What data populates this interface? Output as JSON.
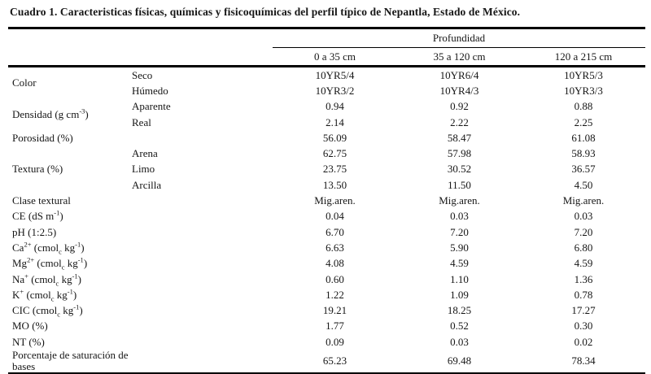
{
  "title": "Cuadro 1. Caracteristicas físicas, químicas y fisicoquímicas del perfil típico de Nepantla, Estado de México.",
  "table": {
    "header": {
      "group_label": "Profundidad",
      "columns": [
        "0 a 35 cm",
        "35 a 120 cm",
        "120 a 215 cm"
      ]
    },
    "rows": [
      {
        "label": [
          {
            "t": "Color"
          }
        ],
        "rowspan": 2,
        "sub": "Seco",
        "values": [
          "10YR5/4",
          "10YR6/4",
          "10YR5/3"
        ]
      },
      {
        "sub": "Húmedo",
        "values": [
          "10YR3/2",
          "10YR4/3",
          "10YR3/3"
        ]
      },
      {
        "label": [
          {
            "t": "Densidad (g cm"
          },
          {
            "t": "-3",
            "s": "sup"
          },
          {
            "t": ")"
          }
        ],
        "rowspan": 2,
        "sub": "Aparente",
        "values": [
          "0.94",
          "0.92",
          "0.88"
        ]
      },
      {
        "sub": "Real",
        "values": [
          "2.14",
          "2.22",
          "2.25"
        ]
      },
      {
        "label": [
          {
            "t": "Porosidad (%)"
          }
        ],
        "sub": "",
        "values": [
          "56.09",
          "58.47",
          "61.08"
        ]
      },
      {
        "label": [
          {
            "t": "Textura (%)"
          }
        ],
        "rowspan": 3,
        "sub": "Arena",
        "values": [
          "62.75",
          "57.98",
          "58.93"
        ]
      },
      {
        "sub": "Limo",
        "values": [
          "23.75",
          "30.52",
          "36.57"
        ]
      },
      {
        "sub": "Arcilla",
        "values": [
          "13.50",
          "11.50",
          "4.50"
        ]
      },
      {
        "label": [
          {
            "t": "Clase textural"
          }
        ],
        "sub": "",
        "values": [
          "Mig.aren.",
          "Mig.aren.",
          "Mig.aren."
        ]
      },
      {
        "label": [
          {
            "t": "CE (dS m"
          },
          {
            "t": "-1",
            "s": "sup"
          },
          {
            "t": ")"
          }
        ],
        "sub": "",
        "values": [
          "0.04",
          "0.03",
          "0.03"
        ]
      },
      {
        "label": [
          {
            "t": "pH (1:2.5)"
          }
        ],
        "sub": "",
        "values": [
          "6.70",
          "7.20",
          "7.20"
        ]
      },
      {
        "label": [
          {
            "t": "Ca"
          },
          {
            "t": "2+",
            "s": "sup"
          },
          {
            "t": " (cmol"
          },
          {
            "t": "c",
            "s": "sub"
          },
          {
            "t": " kg"
          },
          {
            "t": "-1",
            "s": "sup"
          },
          {
            "t": ")"
          }
        ],
        "sub": "",
        "values": [
          "6.63",
          "5.90",
          "6.80"
        ]
      },
      {
        "label": [
          {
            "t": "Mg"
          },
          {
            "t": "2+",
            "s": "sup"
          },
          {
            "t": " (cmol"
          },
          {
            "t": "c",
            "s": "sub"
          },
          {
            "t": " kg"
          },
          {
            "t": "-1",
            "s": "sup"
          },
          {
            "t": ")"
          }
        ],
        "sub": "",
        "values": [
          "4.08",
          "4.59",
          "4.59"
        ]
      },
      {
        "label": [
          {
            "t": "Na"
          },
          {
            "t": "+",
            "s": "sup"
          },
          {
            "t": " (cmol"
          },
          {
            "t": "c",
            "s": "sub"
          },
          {
            "t": " kg"
          },
          {
            "t": "-1",
            "s": "sup"
          },
          {
            "t": ")"
          }
        ],
        "sub": "",
        "values": [
          "0.60",
          "1.10",
          "1.36"
        ]
      },
      {
        "label": [
          {
            "t": "K"
          },
          {
            "t": "+",
            "s": "sup"
          },
          {
            "t": " (cmol"
          },
          {
            "t": "c",
            "s": "sub"
          },
          {
            "t": " kg"
          },
          {
            "t": "-1",
            "s": "sup"
          },
          {
            "t": ")"
          }
        ],
        "sub": "",
        "values": [
          "1.22",
          "1.09",
          "0.78"
        ]
      },
      {
        "label": [
          {
            "t": "CIC (cmol"
          },
          {
            "t": "c",
            "s": "sub"
          },
          {
            "t": " kg"
          },
          {
            "t": "-1",
            "s": "sup"
          },
          {
            "t": ")"
          }
        ],
        "sub": "",
        "values": [
          "19.21",
          "18.25",
          "17.27"
        ]
      },
      {
        "label": [
          {
            "t": "MO (%)"
          }
        ],
        "sub": "",
        "values": [
          "1.77",
          "0.52",
          "0.30"
        ]
      },
      {
        "label": [
          {
            "t": "NT (%)"
          }
        ],
        "sub": "",
        "values": [
          "0.09",
          "0.03",
          "0.02"
        ]
      },
      {
        "label": [
          {
            "t": "Porcentaje de saturación de bases"
          }
        ],
        "sub": "",
        "values": [
          "65.23",
          "69.48",
          "78.34"
        ]
      }
    ]
  }
}
